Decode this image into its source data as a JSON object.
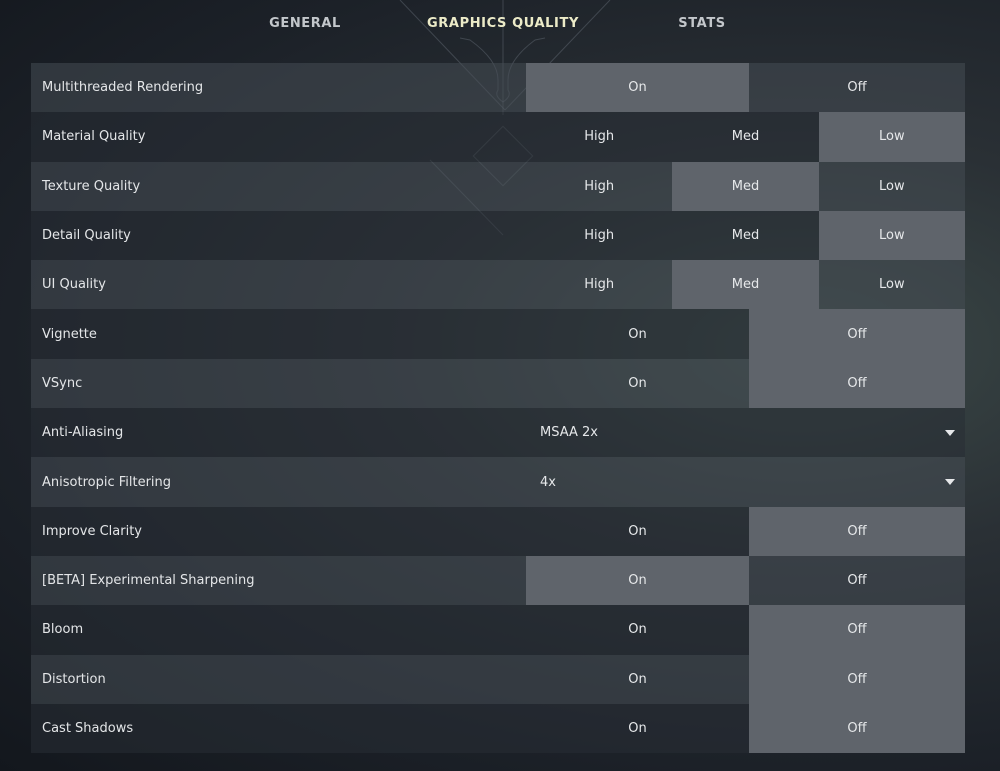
{
  "tabs": [
    {
      "label": "GENERAL",
      "active": false
    },
    {
      "label": "GRAPHICS QUALITY",
      "active": true
    },
    {
      "label": "STATS",
      "active": false
    }
  ],
  "colors": {
    "selected": "#5f646b",
    "active_tab": "#ecebc8"
  },
  "settings": [
    {
      "label": "Multithreaded Rendering",
      "type": "toggle",
      "options": [
        "On",
        "Off"
      ],
      "selected": 0
    },
    {
      "label": "Material Quality",
      "type": "three",
      "options": [
        "High",
        "Med",
        "Low"
      ],
      "selected": 2
    },
    {
      "label": "Texture Quality",
      "type": "three",
      "options": [
        "High",
        "Med",
        "Low"
      ],
      "selected": 1
    },
    {
      "label": "Detail Quality",
      "type": "three",
      "options": [
        "High",
        "Med",
        "Low"
      ],
      "selected": 2
    },
    {
      "label": "UI Quality",
      "type": "three",
      "options": [
        "High",
        "Med",
        "Low"
      ],
      "selected": 1
    },
    {
      "label": "Vignette",
      "type": "toggle",
      "options": [
        "On",
        "Off"
      ],
      "selected": 1
    },
    {
      "label": "VSync",
      "type": "toggle",
      "options": [
        "On",
        "Off"
      ],
      "selected": 1
    },
    {
      "label": "Anti-Aliasing",
      "type": "select",
      "value": "MSAA 2x",
      "icon": "caret-down-icon"
    },
    {
      "label": "Anisotropic Filtering",
      "type": "select",
      "value": "4x",
      "icon": "caret-down-icon"
    },
    {
      "label": "Improve Clarity",
      "type": "toggle",
      "options": [
        "On",
        "Off"
      ],
      "selected": 1
    },
    {
      "label": "[BETA] Experimental Sharpening",
      "type": "toggle",
      "options": [
        "On",
        "Off"
      ],
      "selected": 0
    },
    {
      "label": "Bloom",
      "type": "toggle",
      "options": [
        "On",
        "Off"
      ],
      "selected": 1
    },
    {
      "label": "Distortion",
      "type": "toggle",
      "options": [
        "On",
        "Off"
      ],
      "selected": 1
    },
    {
      "label": "Cast Shadows",
      "type": "toggle",
      "options": [
        "On",
        "Off"
      ],
      "selected": 1
    }
  ]
}
